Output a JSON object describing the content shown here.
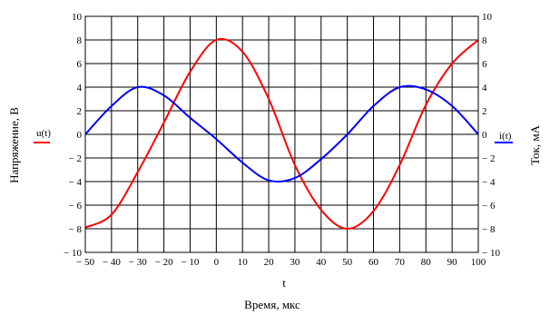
{
  "chart_data": {
    "type": "line",
    "x_label": "Время, мкс",
    "x_var": "t",
    "y_left_label": "Напряжение, В",
    "y_right_label": "Ток, мА",
    "xlim": [
      -50,
      100
    ],
    "ylim_left": [
      -10,
      10
    ],
    "ylim_right": [
      -10,
      10
    ],
    "x_ticks": [
      -50,
      -40,
      -30,
      -20,
      -10,
      0,
      10,
      20,
      30,
      40,
      50,
      60,
      70,
      80,
      90,
      100
    ],
    "x_tick_labels": [
      "− 50",
      "− 40",
      "− 30",
      "− 20",
      "− 10",
      "0",
      "10",
      "20",
      "30",
      "40",
      "50",
      "60",
      "70",
      "80",
      "90",
      "100"
    ],
    "y_ticks": [
      -10,
      -8,
      -6,
      -4,
      -2,
      0,
      2,
      4,
      6,
      8,
      10
    ],
    "y_tick_labels": [
      "− 10",
      "− 8",
      "− 6",
      "− 4",
      "− 2",
      "0",
      "2",
      "4",
      "6",
      "8",
      "10"
    ],
    "grid": true,
    "series": [
      {
        "name": "u(t)",
        "axis": "left",
        "color": "#ff0000",
        "x": [
          -50,
          -40,
          -30,
          -20,
          -10,
          0,
          10,
          20,
          30,
          40,
          50,
          60,
          70,
          80,
          90,
          100
        ],
        "y": [
          -7.9,
          -6.8,
          -3.2,
          1.0,
          5.3,
          8.0,
          7.0,
          3.0,
          -2.6,
          -6.4,
          -8.0,
          -6.5,
          -2.6,
          2.5,
          6.0,
          8.0
        ]
      },
      {
        "name": "i(t)",
        "axis": "right",
        "color": "#0000ff",
        "x": [
          -50,
          -40,
          -30,
          -20,
          -10,
          0,
          10,
          20,
          30,
          40,
          50,
          60,
          70,
          80,
          90,
          100
        ],
        "y": [
          0.0,
          2.4,
          4.0,
          3.3,
          1.4,
          -0.4,
          -2.4,
          -3.9,
          -3.7,
          -2.1,
          0.0,
          2.4,
          4.0,
          3.8,
          2.4,
          0.0
        ]
      }
    ],
    "legend": [
      "u(t)",
      "i(t)"
    ]
  }
}
